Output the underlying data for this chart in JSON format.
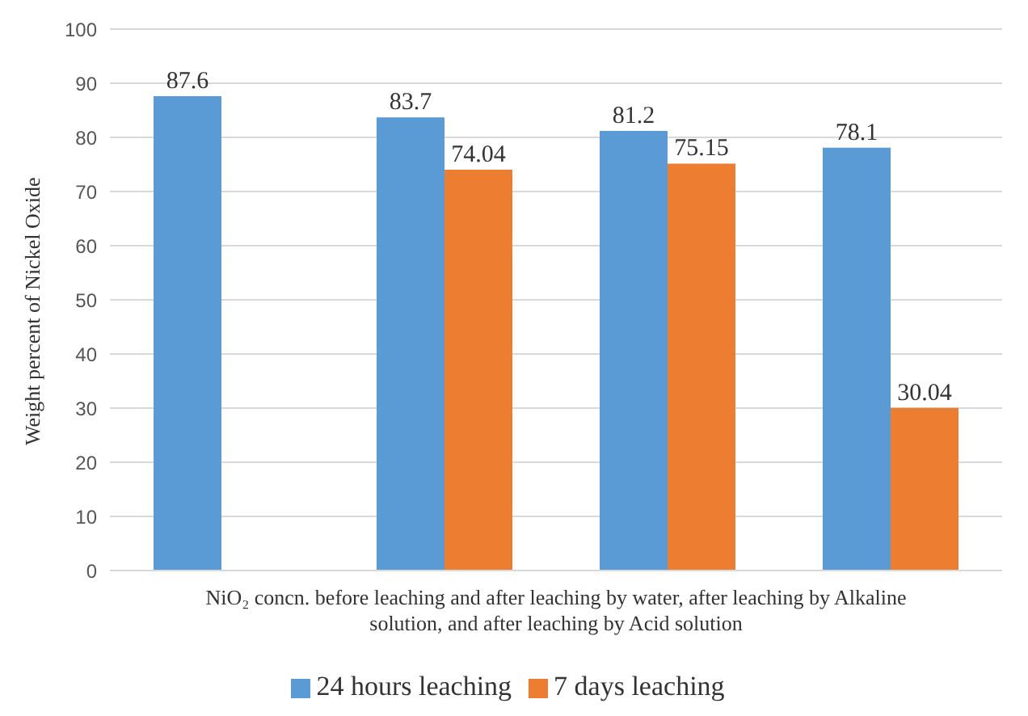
{
  "chart_data": {
    "type": "bar",
    "xlabel": "NiO₂ concn. before leaching  and after leaching by water,  after leaching by Alkaline solution,  and after leaching by Acid solution",
    "ylabel": "Weight percent of Nickel Oxide",
    "categories": [
      null,
      null,
      null,
      null
    ],
    "series": [
      {
        "name": "24 hours leaching",
        "color": "#5b9bd5",
        "values": [
          87.6,
          83.7,
          81.2,
          78.1
        ]
      },
      {
        "name": "7 days leaching",
        "color": "#ed7d31",
        "values": [
          null,
          74.04,
          75.15,
          30.04
        ]
      }
    ],
    "ylim": [
      0,
      100
    ],
    "yticks": [
      0,
      10,
      20,
      30,
      40,
      50,
      60,
      70,
      80,
      90,
      100
    ],
    "grid": "y",
    "legend": "bottom",
    "data_labels": true
  }
}
